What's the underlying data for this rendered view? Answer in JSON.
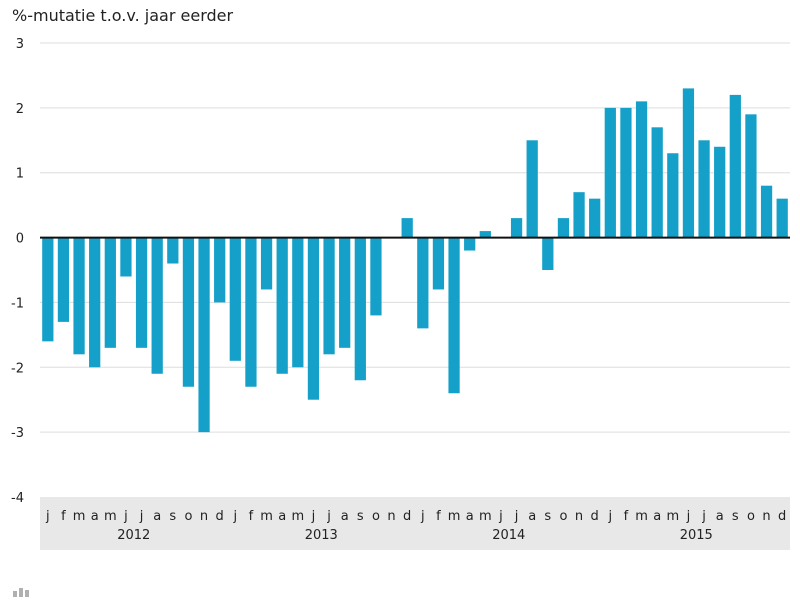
{
  "chart_data": {
    "type": "bar",
    "ylabel": "%-mutatie t.o.v. jaar eerder",
    "xlabel": "",
    "title": "",
    "ylim": [
      -4,
      3
    ],
    "yticks": [
      3,
      2,
      1,
      0,
      -1,
      -2,
      -3,
      -4
    ],
    "grid": true,
    "legend": "none",
    "categories": [
      "j",
      "f",
      "m",
      "a",
      "m",
      "j",
      "j",
      "a",
      "s",
      "o",
      "n",
      "d",
      "j",
      "f",
      "m",
      "a",
      "m",
      "j",
      "j",
      "a",
      "s",
      "o",
      "n",
      "d",
      "j",
      "f",
      "m",
      "a",
      "m",
      "j",
      "j",
      "a",
      "s",
      "o",
      "n",
      "d",
      "j",
      "f",
      "m",
      "a",
      "m",
      "j",
      "j",
      "a",
      "s",
      "o",
      "n",
      "d"
    ],
    "years": [
      {
        "label": "2012",
        "start": 0,
        "end": 11
      },
      {
        "label": "2013",
        "start": 12,
        "end": 23
      },
      {
        "label": "2014",
        "start": 24,
        "end": 35
      },
      {
        "label": "2015",
        "start": 36,
        "end": 47
      }
    ],
    "values": [
      -1.6,
      -1.3,
      -1.8,
      -2.0,
      -1.7,
      -0.6,
      -1.7,
      -2.1,
      -0.4,
      -2.3,
      -3.0,
      -1.0,
      -1.9,
      -2.3,
      -0.8,
      -2.1,
      -2.0,
      -2.5,
      -1.8,
      -1.7,
      -2.2,
      -1.2,
      0.0,
      0.3,
      -1.4,
      -0.8,
      -2.4,
      -0.2,
      0.1,
      0.0,
      0.3,
      1.5,
      -0.5,
      0.3,
      0.7,
      0.6,
      2.0,
      2.0,
      2.1,
      1.7,
      1.3,
      2.3,
      1.5,
      1.4,
      2.2,
      1.9,
      0.8,
      0.6
    ]
  },
  "colors": {
    "bar": "#14a0c8",
    "grid": "#dddddd",
    "axis": "#111111",
    "band": "#e8e8e8",
    "text": "#222222"
  },
  "logo_icon": "cbs-logo-icon"
}
